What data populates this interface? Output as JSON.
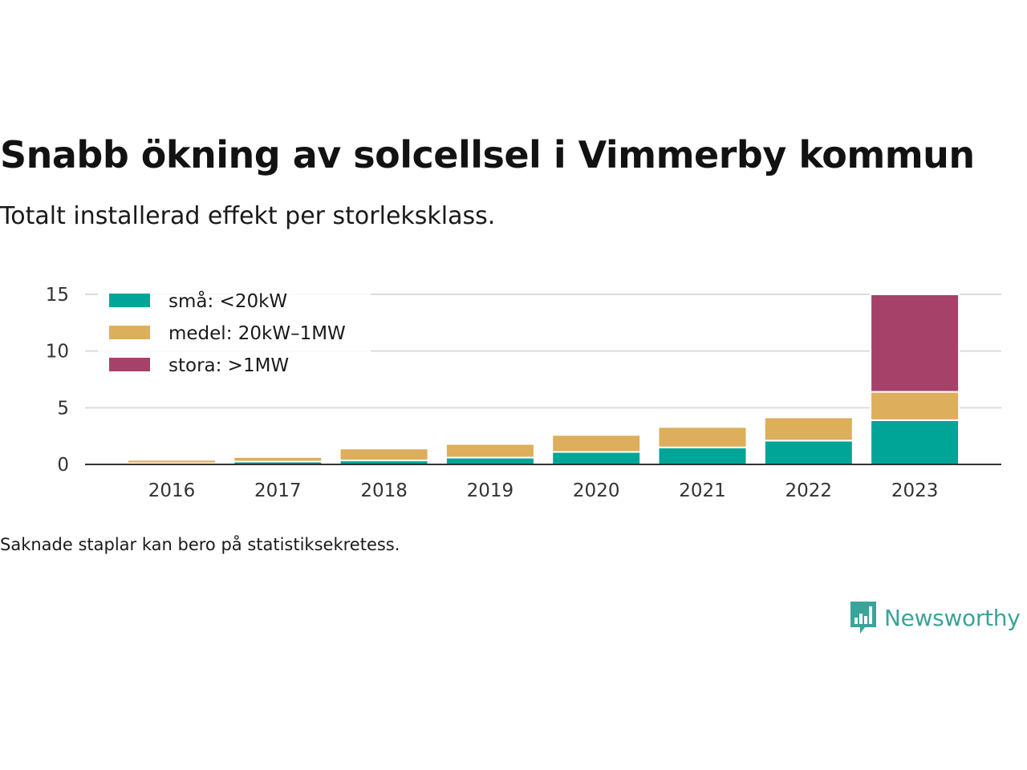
{
  "title": "Snabb ökning av solcellsel i Vimmerby kommun",
  "subtitle": "Totalt installerad effekt per storleksklass.",
  "footnote": "Saknade staplar kan bero på statistiksekretess.",
  "brand": {
    "name": "Newsworthy",
    "color": "#3aa39a",
    "icon": "newsworthy-logo-icon"
  },
  "chart_data": {
    "type": "bar",
    "stacked": true,
    "categories": [
      "2016",
      "2017",
      "2018",
      "2019",
      "2020",
      "2021",
      "2022",
      "2023"
    ],
    "series": [
      {
        "name": "små: <20kW",
        "color": "#00a597",
        "values": [
          0.1,
          0.25,
          0.35,
          0.6,
          1.1,
          1.5,
          2.1,
          3.9
        ]
      },
      {
        "name": "medel: 20kW–1MW",
        "color": "#ddae5c",
        "values": [
          0.3,
          0.4,
          1.05,
          1.2,
          1.5,
          1.8,
          2.05,
          2.5
        ]
      },
      {
        "name": "stora: >1MW",
        "color": "#a6426a",
        "values": [
          0,
          0,
          0,
          0,
          0,
          0,
          0,
          8.6
        ]
      }
    ],
    "ylim": [
      0,
      15
    ],
    "yticks": [
      0,
      5,
      10,
      15
    ],
    "grid": true,
    "legend_position": "top-left",
    "xlabel": "",
    "ylabel": ""
  }
}
